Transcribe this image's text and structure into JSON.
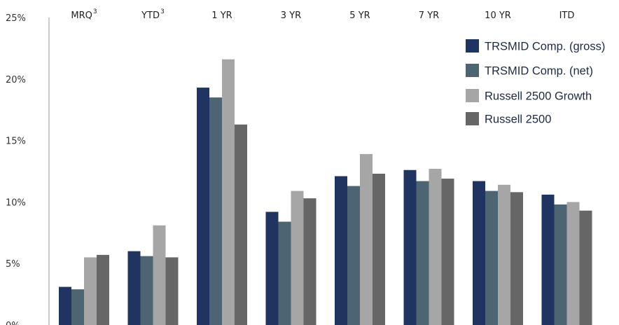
{
  "chart_data": {
    "type": "bar",
    "categories": [
      "MRQ",
      "YTD",
      "1 YR",
      "3 YR",
      "5 YR",
      "7 YR",
      "10 YR",
      "ITD"
    ],
    "category_superscripts": [
      "3",
      "3",
      "",
      "",
      "",
      "",
      "",
      ""
    ],
    "series": [
      {
        "name": "TRSMID Comp. (gross)",
        "color": "#1f3461",
        "values": [
          3.1,
          6.0,
          19.3,
          9.2,
          12.1,
          12.6,
          11.7,
          10.6
        ]
      },
      {
        "name": "TRSMID Comp. (net)",
        "color": "#4d6572",
        "values": [
          2.9,
          5.6,
          18.5,
          8.4,
          11.3,
          11.7,
          10.9,
          9.8
        ]
      },
      {
        "name": "Russell 2500 Growth",
        "color": "#a6a6a6",
        "values": [
          5.5,
          8.1,
          21.6,
          10.9,
          13.9,
          12.7,
          11.4,
          10.0
        ]
      },
      {
        "name": "Russell 2500",
        "color": "#666666",
        "values": [
          5.7,
          5.5,
          16.3,
          10.3,
          12.3,
          11.9,
          10.8,
          9.3
        ]
      }
    ],
    "yticks": [
      "0%",
      "5%",
      "10%",
      "15%",
      "20%",
      "25%"
    ],
    "ytick_values": [
      0,
      5,
      10,
      15,
      20,
      25
    ],
    "ylim": [
      0,
      25
    ],
    "grid": false,
    "legend_position": "top-right",
    "xaxis_position": "top"
  }
}
